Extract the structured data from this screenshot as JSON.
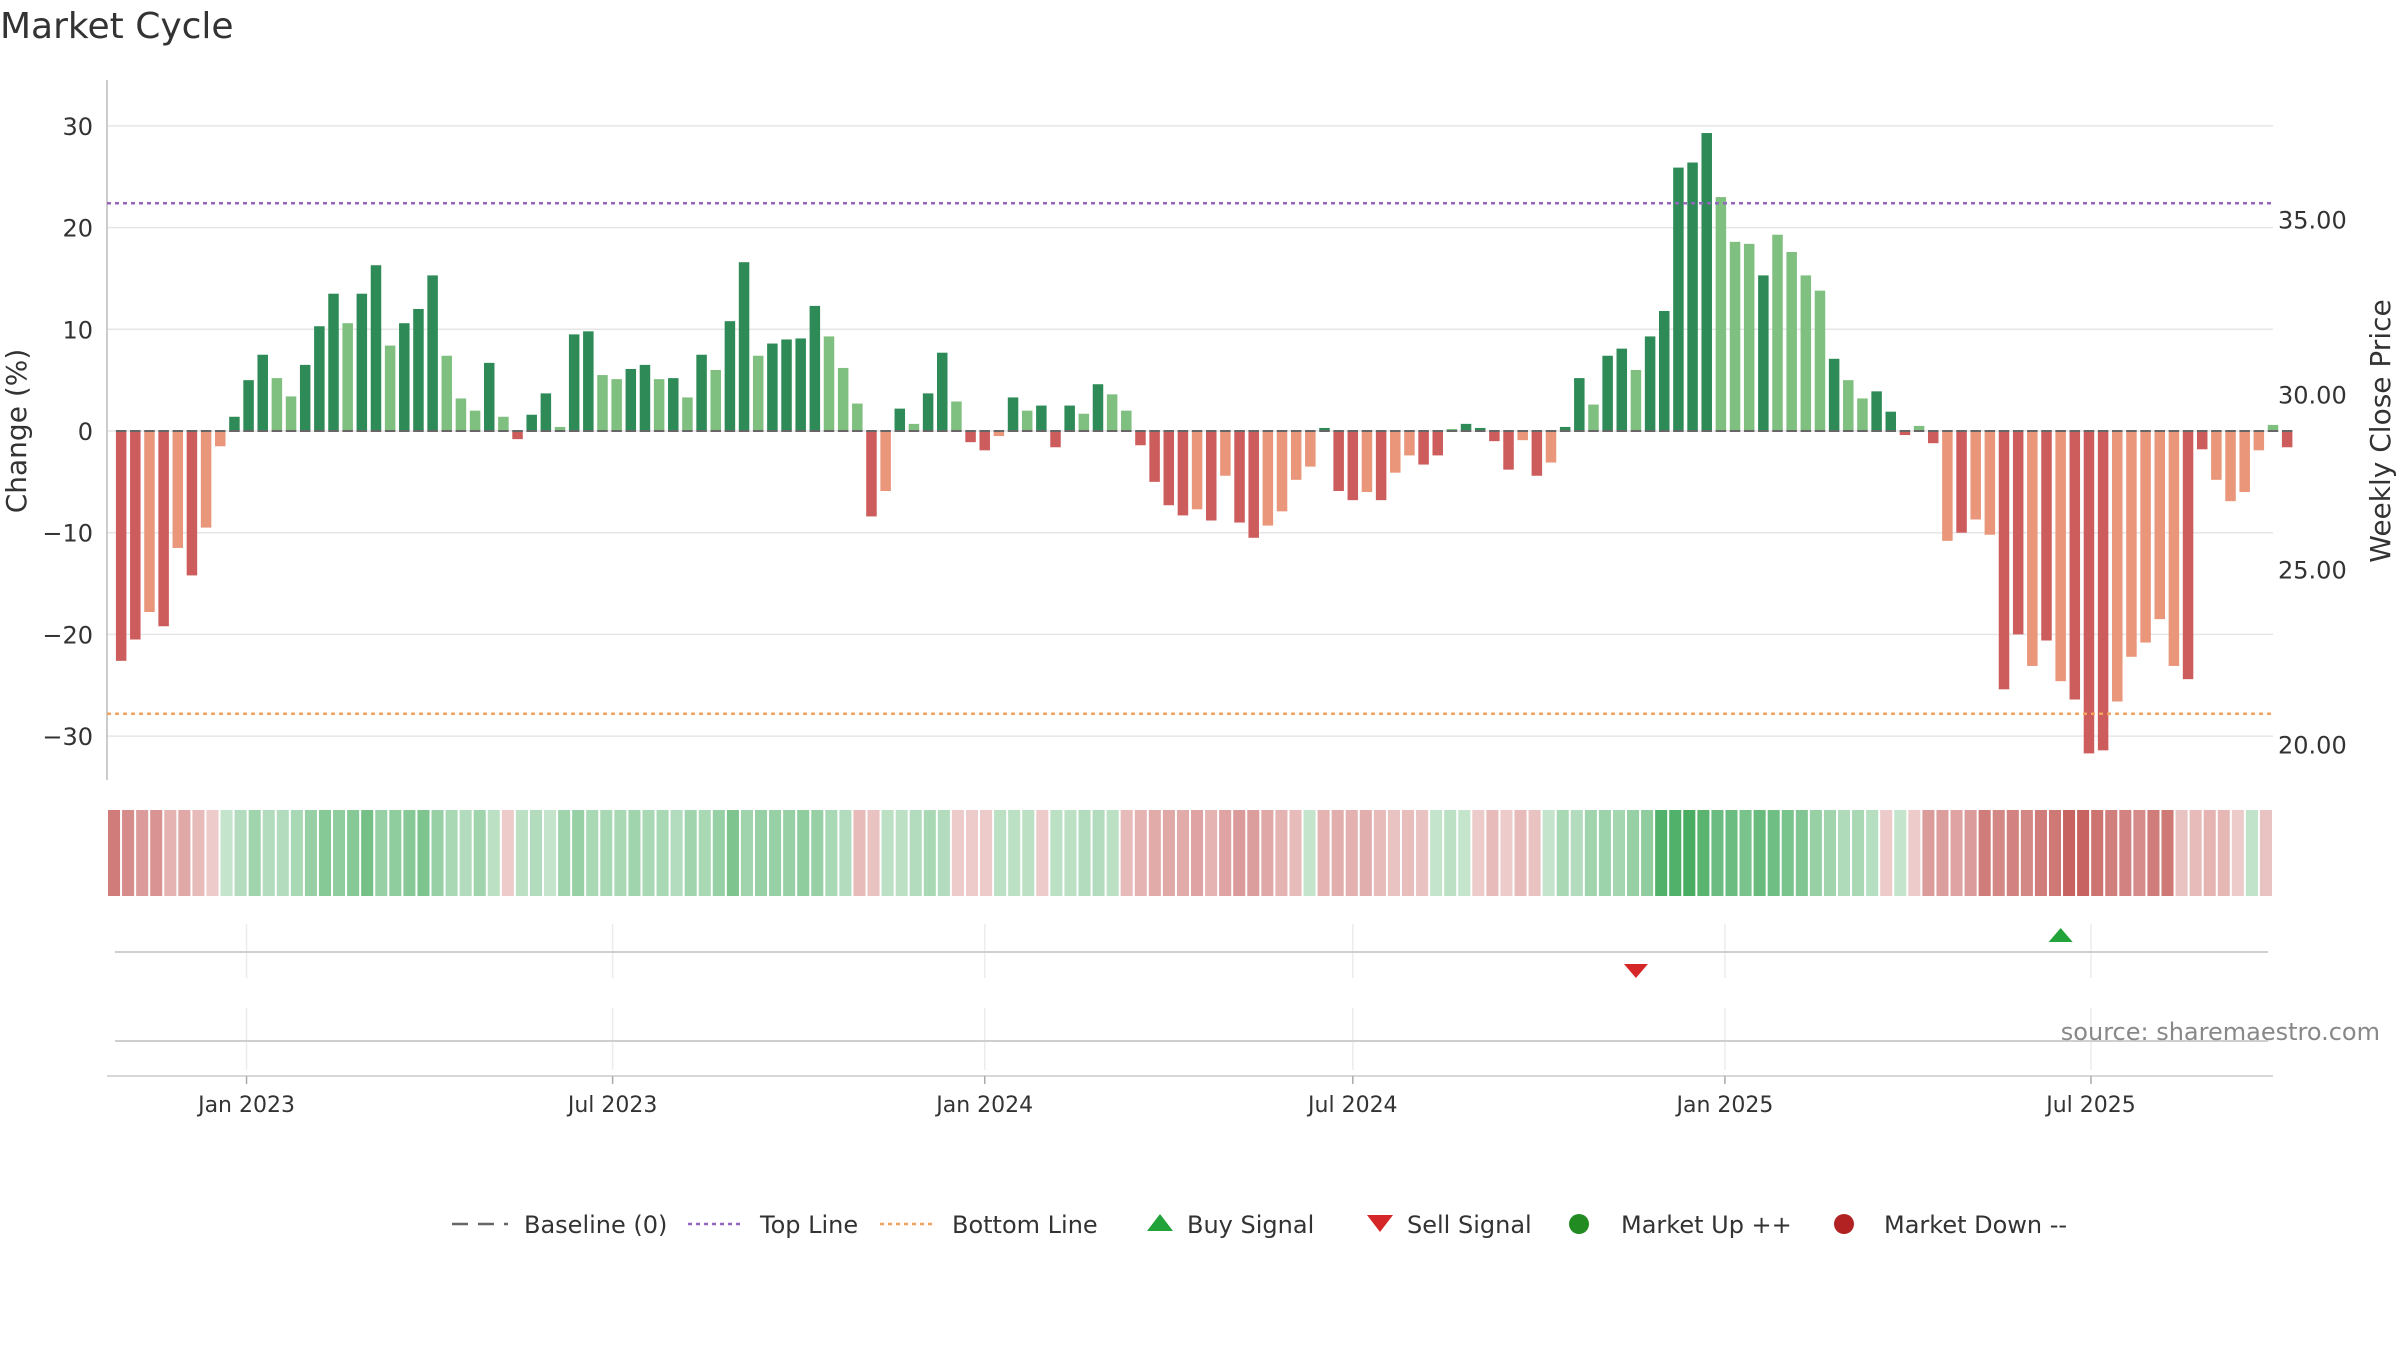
{
  "chart_data": {
    "type": "bar",
    "title": "Market Cycle",
    "ylabel": "Change (%)",
    "y2label": "Weekly Close Price",
    "ylim": [
      -34.5,
      34.5
    ],
    "y2lim": [
      18.71,
      37.85
    ],
    "yticks": [
      "30",
      "20",
      "10",
      "0",
      "−10",
      "−20",
      "−30"
    ],
    "yticks_values": [
      30,
      20,
      10,
      0,
      -10,
      -20,
      -30
    ],
    "y2ticks": [
      "35.00",
      "30.00",
      "25.00",
      "20.00"
    ],
    "y2ticks_values": [
      35,
      30,
      25,
      20
    ],
    "xrange": [
      "2022-10-24",
      "2025-09-29"
    ],
    "xticks": [
      "Jan 2023",
      "Jul 2023",
      "Jan 2024",
      "Jul 2024",
      "Jan 2025",
      "Jul 2025"
    ],
    "xticks_dates": [
      "2023-01-01",
      "2023-07-01",
      "2024-01-01",
      "2024-07-01",
      "2025-01-01",
      "2025-07-01"
    ],
    "grid": true,
    "top_line": 22.4,
    "bottom_line": -27.8,
    "weeks_start": "2022-10-31",
    "weekly_change": [
      -22.6,
      -20.5,
      -17.8,
      -19.2,
      -11.5,
      -14.2,
      -9.5,
      -1.5,
      1.4,
      5.0,
      7.5,
      5.2,
      3.4,
      6.5,
      10.3,
      13.5,
      10.6,
      13.5,
      16.3,
      8.4,
      10.6,
      12.0,
      15.3,
      7.4,
      3.2,
      2.0,
      6.7,
      1.4,
      -0.8,
      1.6,
      3.7,
      0.4,
      9.5,
      9.8,
      5.5,
      5.1,
      6.1,
      6.5,
      5.1,
      5.2,
      3.3,
      7.5,
      6.0,
      10.8,
      16.6,
      7.4,
      8.6,
      9.0,
      9.1,
      12.3,
      9.3,
      6.2,
      2.7,
      -8.4,
      -5.9,
      2.2,
      0.7,
      3.7,
      7.7,
      2.9,
      -1.1,
      -1.9,
      -0.5,
      3.3,
      2.0,
      2.5,
      -1.6,
      2.5,
      1.7,
      4.6,
      3.6,
      2.0,
      -1.4,
      -5.0,
      -7.3,
      -8.3,
      -7.7,
      -8.8,
      -4.4,
      -9.0,
      -10.5,
      -9.3,
      -7.9,
      -4.8,
      -3.5,
      0.3,
      -5.9,
      -6.8,
      -6.0,
      -6.8,
      -4.1,
      -2.4,
      -3.3,
      -2.4,
      0.2,
      0.7,
      0.3,
      -1.0,
      -3.8,
      -0.9,
      -4.4,
      -3.1,
      0.4,
      5.2,
      2.6,
      7.4,
      8.1,
      6.0,
      9.3,
      11.8,
      25.9,
      26.4,
      29.3,
      23.0,
      18.6,
      18.4,
      15.3,
      19.3,
      17.6,
      15.3,
      13.8,
      7.1,
      5.0,
      3.2,
      3.9,
      1.9,
      -0.4,
      0.5,
      -1.2,
      -10.8,
      -10.0,
      -8.7,
      -10.2,
      -25.4,
      -20.0,
      -23.1,
      -20.6,
      -24.6,
      -26.4,
      -31.7,
      -31.4,
      -26.6,
      -22.2,
      -20.8,
      -18.5,
      -23.1,
      -24.4,
      -1.8,
      -4.8,
      -6.9,
      -6.0,
      -1.9,
      0.6,
      -1.6
    ],
    "shade_class": [
      "d",
      "d",
      "m",
      "d",
      "m",
      "d",
      "m",
      "m",
      "d",
      "d",
      "d",
      "m",
      "m",
      "d",
      "d",
      "d",
      "m",
      "d",
      "d",
      "m",
      "d",
      "d",
      "d",
      "m",
      "m",
      "m",
      "d",
      "m",
      "d",
      "d",
      "d",
      "m",
      "d",
      "d",
      "m",
      "m",
      "d",
      "d",
      "m",
      "d",
      "m",
      "d",
      "m",
      "d",
      "d",
      "m",
      "d",
      "d",
      "d",
      "d",
      "m",
      "m",
      "m",
      "d",
      "m",
      "d",
      "m",
      "d",
      "d",
      "m",
      "d",
      "d",
      "m",
      "d",
      "m",
      "d",
      "d",
      "d",
      "m",
      "d",
      "m",
      "m",
      "d",
      "d",
      "d",
      "d",
      "m",
      "d",
      "m",
      "d",
      "d",
      "m",
      "m",
      "m",
      "m",
      "d",
      "d",
      "d",
      "m",
      "d",
      "m",
      "m",
      "d",
      "d",
      "m",
      "d",
      "d",
      "d",
      "d",
      "m",
      "d",
      "m",
      "d",
      "d",
      "m",
      "d",
      "d",
      "m",
      "d",
      "d",
      "d",
      "d",
      "d",
      "m",
      "m",
      "m",
      "d",
      "m",
      "m",
      "m",
      "m",
      "d",
      "m",
      "m",
      "d",
      "d",
      "d",
      "m",
      "d",
      "m",
      "d",
      "m",
      "m",
      "d",
      "d",
      "m",
      "d",
      "m",
      "d",
      "d",
      "d",
      "m",
      "m",
      "m",
      "m",
      "m",
      "d",
      "d",
      "m",
      "m",
      "m",
      "m",
      "m",
      "d",
      "m"
    ],
    "heat_strength": [
      0.7,
      0.6,
      0.5,
      0.55,
      0.35,
      0.42,
      0.3,
      0.2,
      0.2,
      0.3,
      0.4,
      0.3,
      0.3,
      0.35,
      0.45,
      0.55,
      0.5,
      0.55,
      0.65,
      0.45,
      0.5,
      0.55,
      0.6,
      0.45,
      0.35,
      0.3,
      0.4,
      0.25,
      0.2,
      0.25,
      0.3,
      0.2,
      0.4,
      0.45,
      0.35,
      0.35,
      0.35,
      0.4,
      0.35,
      0.35,
      0.3,
      0.4,
      0.35,
      0.45,
      0.6,
      0.4,
      0.45,
      0.45,
      0.45,
      0.5,
      0.45,
      0.35,
      0.3,
      0.3,
      0.25,
      0.25,
      0.25,
      0.3,
      0.35,
      0.3,
      0.2,
      0.2,
      0.2,
      0.25,
      0.25,
      0.25,
      0.2,
      0.25,
      0.25,
      0.3,
      0.3,
      0.25,
      0.3,
      0.35,
      0.4,
      0.42,
      0.4,
      0.45,
      0.35,
      0.45,
      0.5,
      0.48,
      0.42,
      0.35,
      0.3,
      0.2,
      0.35,
      0.38,
      0.36,
      0.38,
      0.3,
      0.25,
      0.28,
      0.25,
      0.2,
      0.25,
      0.2,
      0.2,
      0.3,
      0.2,
      0.3,
      0.25,
      0.2,
      0.35,
      0.3,
      0.4,
      0.42,
      0.38,
      0.45,
      0.5,
      0.85,
      0.85,
      0.9,
      0.8,
      0.7,
      0.7,
      0.62,
      0.72,
      0.68,
      0.62,
      0.58,
      0.45,
      0.4,
      0.32,
      0.35,
      0.28,
      0.2,
      0.2,
      0.2,
      0.5,
      0.48,
      0.45,
      0.5,
      0.7,
      0.62,
      0.66,
      0.62,
      0.7,
      0.72,
      0.85,
      0.85,
      0.75,
      0.68,
      0.66,
      0.6,
      0.7,
      0.72,
      0.25,
      0.3,
      0.35,
      0.32,
      0.2,
      0.22,
      0.25
    ],
    "sell_signals": [
      "2024-11-18"
    ],
    "buy_signals": [
      "2025-06-16"
    ],
    "source": "source: sharemaestro.com",
    "legend": [
      {
        "label": "Baseline (0)",
        "kind": "baseline"
      },
      {
        "label": "Top Line",
        "kind": "top"
      },
      {
        "label": "Bottom Line",
        "kind": "bottom"
      },
      {
        "label": "Buy Signal",
        "kind": "buy"
      },
      {
        "label": "Sell Signal",
        "kind": "sell"
      },
      {
        "label": "Market Up ++",
        "kind": "up"
      },
      {
        "label": "Market Down --",
        "kind": "down"
      }
    ],
    "colors": {
      "dark_green": "#2e8b57",
      "light_green": "#7fbf7f",
      "dark_red": "#cd5c5c",
      "light_red": "#e9967a",
      "top_line": "#9467bd",
      "bottom_line": "#f4a460",
      "buy": "#22a33a",
      "sell": "#d62728",
      "market_up": "#228b22",
      "market_down": "#b22222",
      "baseline": "#666666"
    }
  }
}
